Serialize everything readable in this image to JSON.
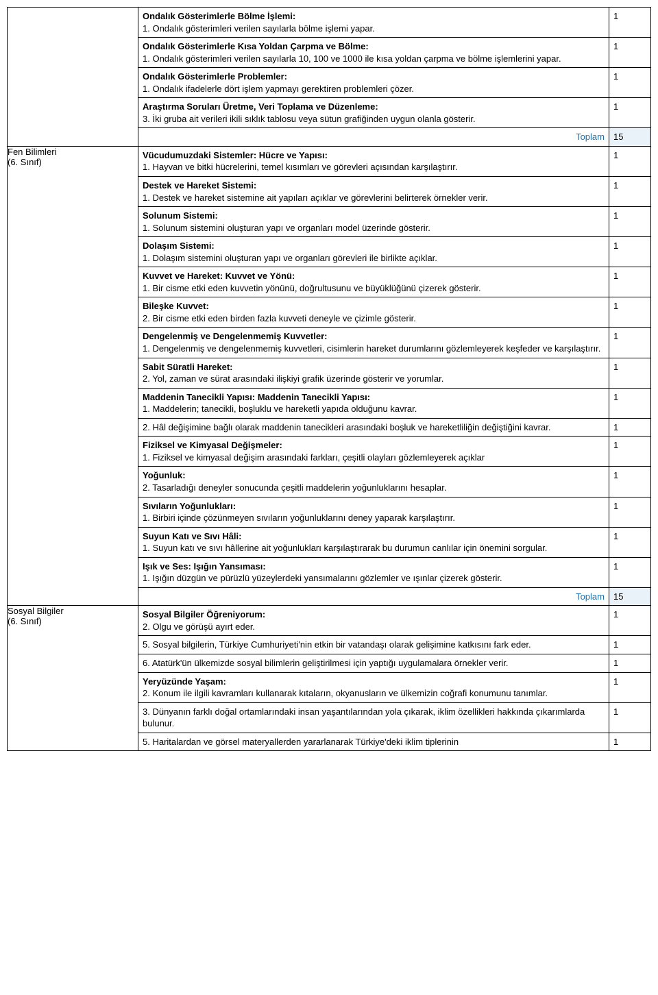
{
  "labels": {
    "toplam": "Toplam"
  },
  "sections": [
    {
      "left": "",
      "rows": [
        {
          "title": "Ondalık Gösterimlerle Bölme İşlemi:",
          "body": "1. Ondalık gösterimleri verilen sayılarla bölme işlemi yapar.",
          "val": "1"
        },
        {
          "title": "Ondalık Gösterimlerle Kısa Yoldan Çarpma ve Bölme:",
          "body": "1. Ondalık gösterimleri verilen sayılarla 10, 100 ve 1000 ile kısa yoldan çarpma ve bölme işlemlerini yapar.",
          "val": "1"
        },
        {
          "title": "Ondalık Gösterimlerle Problemler:",
          "body": "1. Ondalık ifadelerle dört işlem yapmayı gerektiren problemleri çözer.",
          "val": "1"
        },
        {
          "title": "Araştırma Soruları Üretme, Veri Toplama ve Düzenleme:",
          "body": "3. İki gruba ait verileri ikili sıklık tablosu veya sütun grafiğinden uygun olanla gösterir.",
          "val": "1"
        }
      ],
      "total": "15"
    },
    {
      "left": "Fen Bilimleri\n(6. Sınıf)",
      "rows": [
        {
          "title": "Vücudumuzdaki Sistemler: Hücre ve Yapısı:",
          "body": "1. Hayvan ve bitki hücrelerini, temel kısımları ve görevleri açısından karşılaştırır.",
          "val": "1"
        },
        {
          "title": "Destek ve Hareket Sistemi:",
          "body": "1. Destek ve hareket sistemine ait yapıları açıklar ve görevlerini belirterek örnekler verir.",
          "val": "1"
        },
        {
          "title": "Solunum Sistemi:",
          "body": "1. Solunum sistemini oluşturan yapı ve organları model üzerinde gösterir.",
          "val": "1"
        },
        {
          "title": "Dolaşım Sistemi:",
          "body": "1. Dolaşım sistemini oluşturan yapı ve organları görevleri ile birlikte açıklar.",
          "val": "1"
        },
        {
          "title": "Kuvvet ve Hareket: Kuvvet ve Yönü:",
          "body": "1. Bir cisme etki eden kuvvetin yönünü, doğrultusunu ve büyüklüğünü çizerek gösterir.",
          "val": "1"
        },
        {
          "title": "Bileşke Kuvvet:",
          "body": "2. Bir cisme etki eden birden fazla kuvveti deneyle ve çizimle gösterir.",
          "val": "1"
        },
        {
          "title": "Dengelenmiş ve Dengelenmemiş Kuvvetler:",
          "body": "1. Dengelenmiş ve dengelenmemiş kuvvetleri, cisimlerin hareket durumlarını gözlemleyerek keşfeder ve karşılaştırır.",
          "val": "1"
        },
        {
          "title": "Sabit Süratli Hareket:",
          "body": "2. Yol, zaman ve sürat arasındaki ilişkiyi grafik üzerinde gösterir ve yorumlar.",
          "val": "1"
        },
        {
          "title": "Maddenin Tanecikli Yapısı: Maddenin Tanecikli Yapısı:",
          "body": "1. Maddelerin; tanecikli, boşluklu ve hareketli yapıda olduğunu kavrar.",
          "val": "1"
        },
        {
          "title": "",
          "body": "2. Hâl değişimine bağlı olarak maddenin tanecikleri arasındaki boşluk ve hareketliliğin değiştiğini kavrar.",
          "val": "1"
        },
        {
          "title": "Fiziksel ve Kimyasal Değişmeler:",
          "body": "1. Fiziksel ve kimyasal değişim arasındaki farkları, çeşitli olayları gözlemleyerek açıklar",
          "val": "1"
        },
        {
          "title": "Yoğunluk:",
          "body": "2. Tasarladığı deneyler sonucunda çeşitli maddelerin yoğunluklarını hesaplar.",
          "val": "1"
        },
        {
          "title": "Sıvıların Yoğunlukları:",
          "body": "1. Birbiri içinde çözünmeyen sıvıların yoğunluklarını deney yaparak karşılaştırır.",
          "val": "1"
        },
        {
          "title": "Suyun Katı ve Sıvı Hâli:",
          "body": "1. Suyun katı ve sıvı hâllerine ait yoğunlukları karşılaştırarak bu durumun canlılar için önemini sorgular.",
          "val": "1"
        },
        {
          "title": "Işık ve Ses: Işığın Yansıması:",
          "body": "1. Işığın düzgün ve pürüzlü yüzeylerdeki yansımalarını gözlemler ve ışınlar çizerek gösterir.",
          "val": "1"
        }
      ],
      "total": "15"
    },
    {
      "left": "Sosyal Bilgiler\n(6. Sınıf)",
      "rows": [
        {
          "title": "Sosyal Bilgiler Öğreniyorum:",
          "body": "2. Olgu ve görüşü ayırt eder.",
          "val": "1"
        },
        {
          "title": "",
          "body": "5. Sosyal bilgilerin, Türkiye Cumhuriyeti'nin etkin bir vatandaşı olarak gelişimine katkısını fark eder.",
          "val": "1"
        },
        {
          "title": "",
          "body": "6. Atatürk'ün ülkemizde sosyal bilimlerin geliştirilmesi için yaptığı uygulamalara örnekler verir.",
          "val": "1"
        },
        {
          "title": "Yeryüzünde Yaşam:",
          "body": "2. Konum ile ilgili kavramları kullanarak kıtaların, okyanusların ve ülkemizin coğrafi konumunu tanımlar.",
          "val": "1"
        },
        {
          "title": "",
          "body": "3. Dünyanın farklı doğal ortamlarındaki insan yaşantılarından yola çıkarak, iklim özellikleri hakkında çıkarımlarda bulunur.",
          "val": "1"
        },
        {
          "title": "",
          "body": "5. Haritalardan ve görsel materyallerden yararlanarak Türkiye'deki iklim tiplerinin",
          "val": "1"
        }
      ],
      "total": null
    }
  ]
}
